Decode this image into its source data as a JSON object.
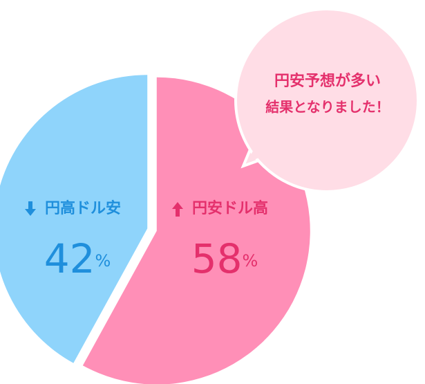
{
  "chart_data": {
    "type": "pie",
    "categories": [
      "円高ドル安",
      "円安ドル高"
    ],
    "values": [
      42,
      58
    ],
    "value_labels": [
      "42%",
      "58%"
    ],
    "colors": [
      "#8fd4fb",
      "#ff8fb7"
    ],
    "label_colors": [
      "#1f8fdc",
      "#e4306c"
    ],
    "annotation": [
      "円安予想が多い",
      "結果となりました！"
    ]
  }
}
